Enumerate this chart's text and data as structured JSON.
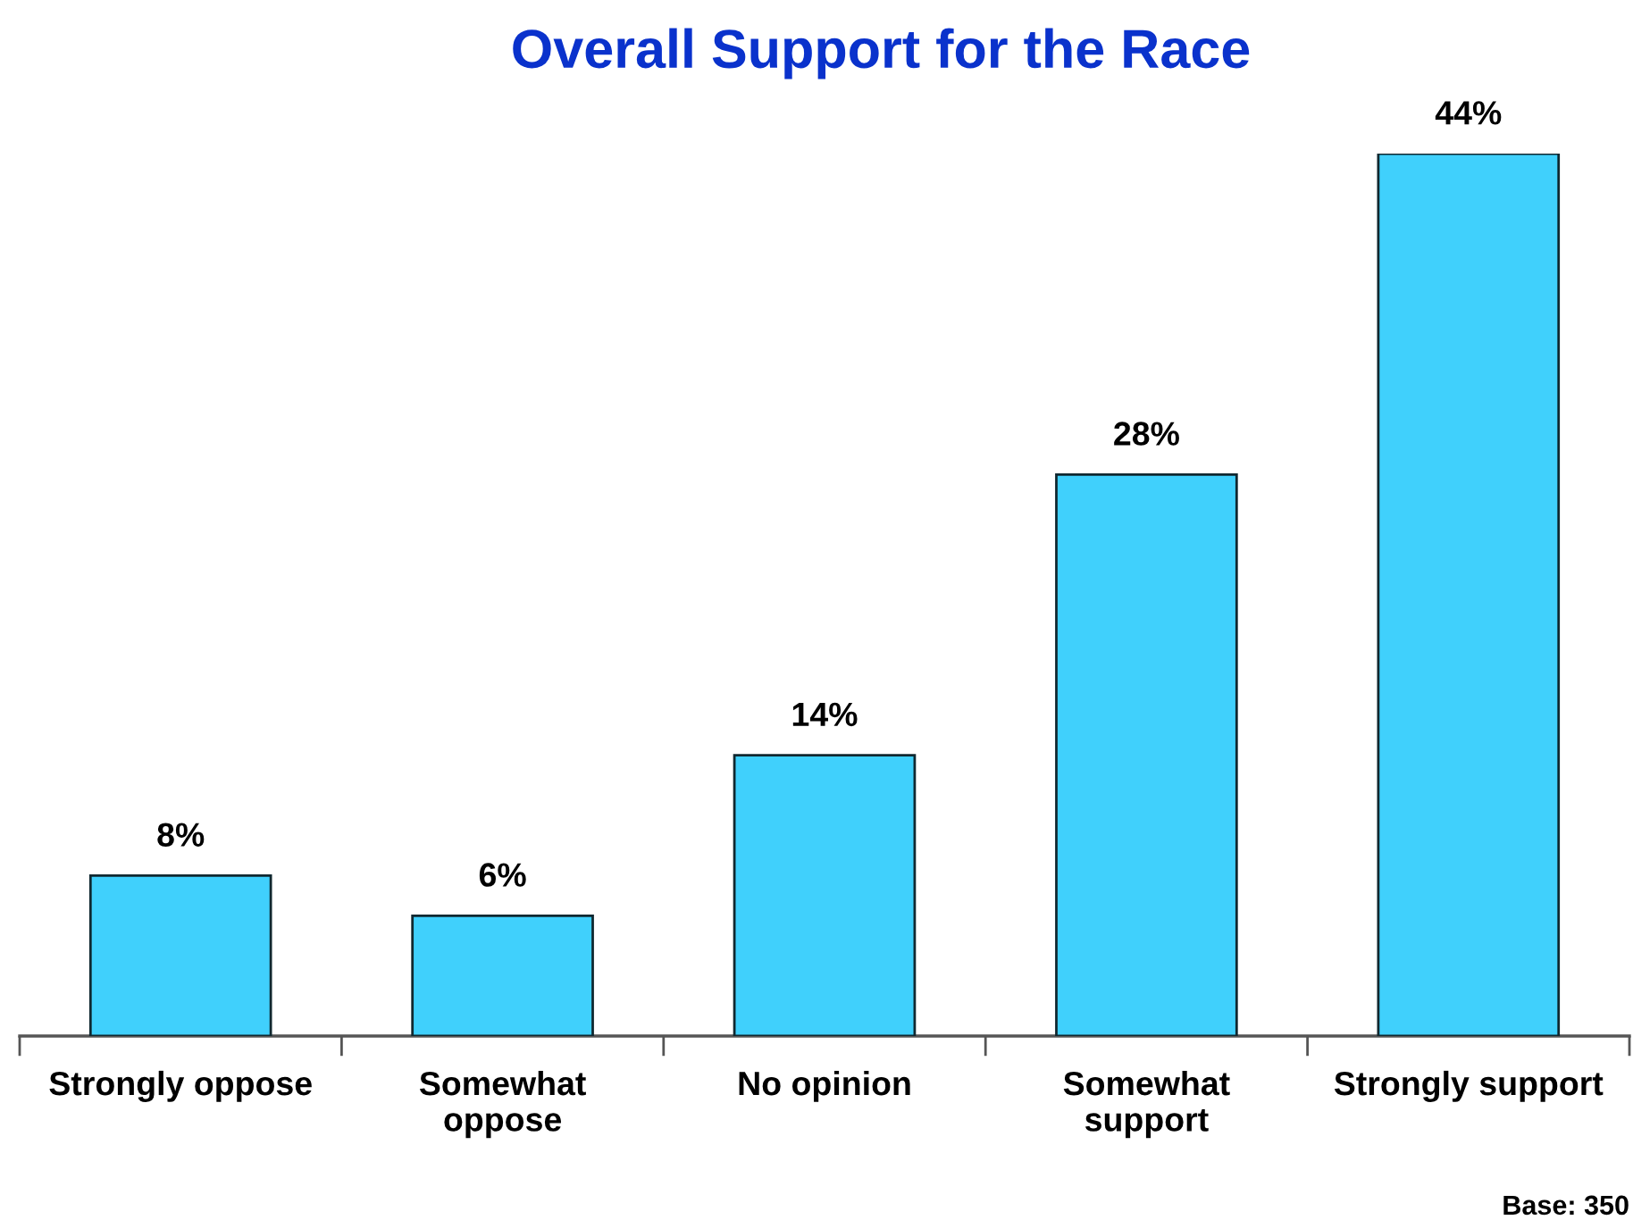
{
  "chart_data": {
    "type": "bar",
    "title": "Overall Support for the Race",
    "categories": [
      "Strongly oppose",
      "Somewhat\noppose",
      "No opinion",
      "Somewhat\nsupport",
      "Strongly support"
    ],
    "values": [
      8,
      6,
      14,
      28,
      44
    ],
    "value_labels": [
      "8%",
      "6%",
      "14%",
      "28%",
      "44%"
    ],
    "color": "#40d0fc",
    "annotations": [
      "Base: 350"
    ]
  }
}
